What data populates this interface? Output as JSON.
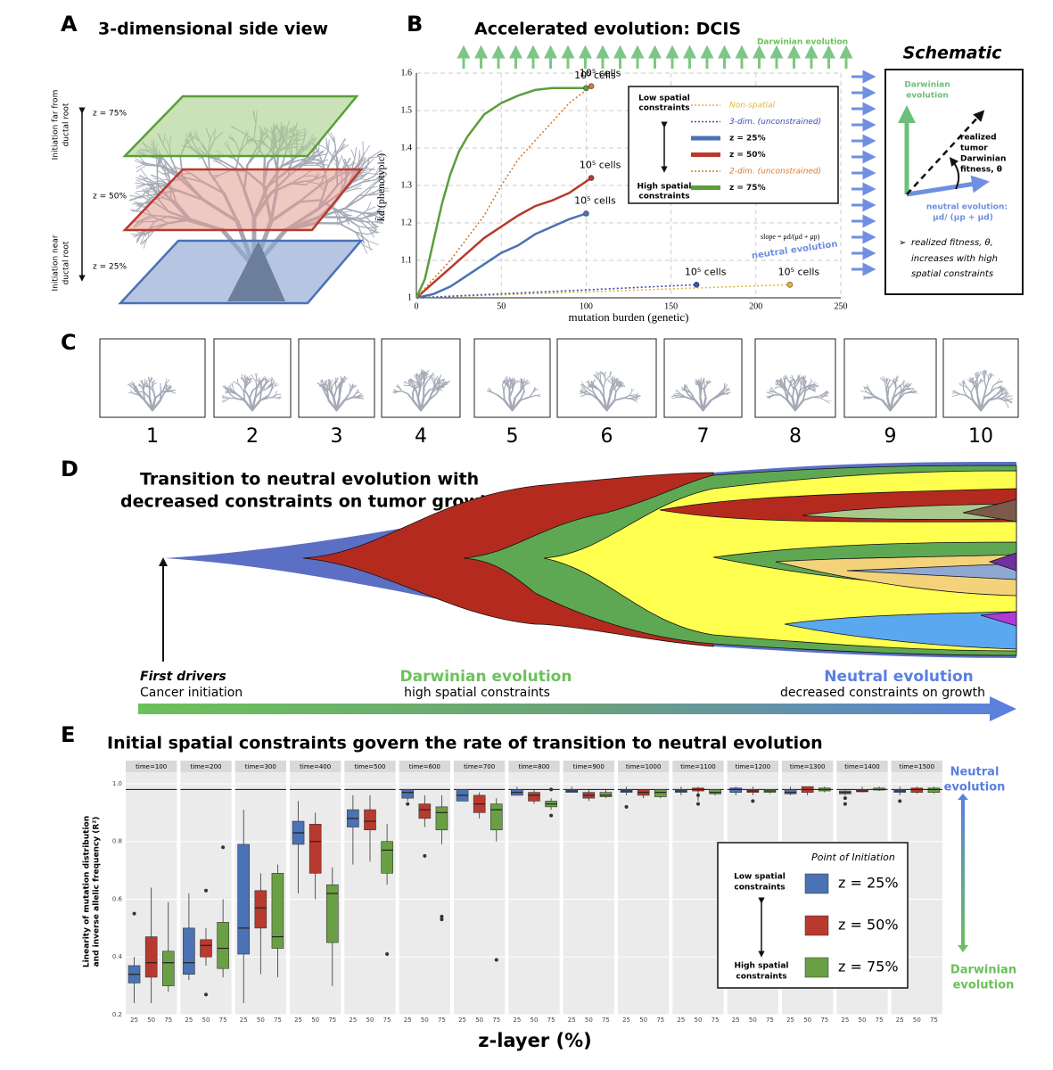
{
  "panel_letters": [
    "A",
    "B",
    "C",
    "D",
    "E"
  ],
  "panel_a": {
    "title": "3-dimensional side view",
    "top_label": [
      "Initiation far from",
      "ductal root"
    ],
    "bottom_label": [
      "Initiation near",
      "ductal root"
    ],
    "layers": [
      "z = 75%",
      "z = 50%",
      "z = 25%"
    ]
  },
  "schematic": {
    "title": "Schematic",
    "darwinian": [
      "Darwinian",
      "evolution"
    ],
    "realized": [
      "realized",
      "tumor",
      "Darwinian",
      "fitness, θ"
    ],
    "neutral": [
      "neutral evolution:",
      "μd/ (μp + μd)"
    ],
    "note": [
      "realized fitness, θ,",
      "increases with high",
      "spatial constraints"
    ]
  },
  "panel_c": {
    "labels": [
      "1",
      "2",
      "3",
      "4",
      "5",
      "6",
      "7",
      "8",
      "9",
      "10"
    ]
  },
  "panel_d": {
    "title": [
      "Transition to neutral evolution with",
      "decreased constraints on tumor growth"
    ],
    "start_title": "First drivers",
    "start_text": "Cancer initiation",
    "middle_title": "Darwinian evolution",
    "middle_text": "high spatial constraints",
    "end_title": "Neutral evolution",
    "end_text": "decreased constraints on growth"
  },
  "chart_data": [
    {
      "type": "line",
      "title": "Accelerated evolution: DCIS",
      "xlabel": "mutation burden (genetic)",
      "ylabel": "k̄d (phenotypic)",
      "xlim": [
        0,
        250
      ],
      "ylim": [
        1,
        1.6
      ],
      "xticks": [
        0,
        50,
        100,
        150,
        200,
        250
      ],
      "yticks": [
        1,
        1.1,
        1.2,
        1.3,
        1.4,
        1.5,
        1.6
      ],
      "grid": true,
      "legend_labels": [
        [
          "Low spatial",
          "constraints"
        ],
        [
          "High spatial",
          "constraints"
        ]
      ],
      "darwinian_label": "Darwinian evolution",
      "slope_label": "slope = μd/(μd + μp)",
      "neutral_label": "neutral evolution",
      "series": [
        {
          "name": "Non-spatial",
          "color": "#e3b53c",
          "style": "dotted",
          "end_label": "10⁵ cells",
          "x": [
            0,
            220
          ],
          "values": [
            1,
            1.035
          ]
        },
        {
          "name": "3-dim. (unconstrained)",
          "color": "#3b4fb0",
          "style": "dotted",
          "end_label": "10⁵ cells",
          "x": [
            0,
            165
          ],
          "values": [
            1,
            1.035
          ]
        },
        {
          "name": "z = 25%",
          "color": "#4a72b5",
          "style": "solid",
          "end_label": "10⁵ cells",
          "x": [
            0,
            10,
            20,
            30,
            40,
            50,
            60,
            70,
            80,
            90,
            100
          ],
          "values": [
            1,
            1.01,
            1.03,
            1.06,
            1.09,
            1.12,
            1.14,
            1.17,
            1.19,
            1.21,
            1.225
          ]
        },
        {
          "name": "z = 50%",
          "color": "#b83a2e",
          "style": "solid",
          "end_label": "10⁵ cells",
          "x": [
            0,
            10,
            20,
            30,
            40,
            50,
            60,
            70,
            80,
            90,
            103
          ],
          "values": [
            1,
            1.04,
            1.08,
            1.12,
            1.16,
            1.19,
            1.22,
            1.245,
            1.26,
            1.28,
            1.32
          ]
        },
        {
          "name": "2-dim. (unconstrained)",
          "color": "#d9792b",
          "style": "dotted",
          "end_label": "10⁵ cells",
          "x": [
            0,
            10,
            20,
            30,
            40,
            50,
            60,
            70,
            80,
            90,
            103
          ],
          "values": [
            1,
            1.05,
            1.1,
            1.16,
            1.22,
            1.3,
            1.37,
            1.42,
            1.47,
            1.52,
            1.565
          ]
        },
        {
          "name": "z = 75%",
          "color": "#5a9e3c",
          "style": "solid",
          "end_label": "10⁵ cells",
          "x": [
            0,
            5,
            10,
            15,
            20,
            25,
            30,
            40,
            50,
            60,
            70,
            80,
            100
          ],
          "values": [
            1,
            1.05,
            1.15,
            1.25,
            1.33,
            1.39,
            1.43,
            1.49,
            1.52,
            1.54,
            1.555,
            1.56,
            1.56
          ]
        }
      ]
    },
    {
      "type": "box",
      "title": "Initial spatial constraints govern the rate of transition to neutral evolution",
      "xlabel": "z-layer (%)",
      "ylabel": [
        "Linearity of mutation distribution",
        "and inverse allelic frequency (R²)"
      ],
      "facets": [
        "time=100",
        "time=200",
        "time=300",
        "time=400",
        "time=500",
        "time=600",
        "time=700",
        "time=800",
        "time=900",
        "time=1000",
        "time=1100",
        "time=1200",
        "time=1300",
        "time=1400",
        "time=1500"
      ],
      "categories": [
        "25",
        "50",
        "75"
      ],
      "ylim": [
        0.2,
        1.04
      ],
      "yticks": [
        0.2,
        0.4,
        0.6,
        0.8,
        {
          "value": 1,
          "label": "1.0"
        }
      ],
      "grid": true,
      "reference_line": 0.98,
      "legend_title": "Point of Initiation",
      "legend_labels": [
        [
          "Low spatial",
          "constraints"
        ],
        [
          "High spatial",
          "constraints"
        ]
      ],
      "side_labels": [
        [
          "Neutral",
          "evolution"
        ],
        [
          "Darwinian",
          "evolution"
        ]
      ],
      "series": [
        {
          "name": "z = 25%",
          "color": "#4a72b5",
          "min": [
            0.24,
            0.32,
            0.24,
            0.62,
            0.72,
            0.94,
            0.94,
            0.96,
            0.97,
            0.96,
            0.96,
            0.96,
            0.96,
            0.96,
            0.96
          ],
          "q1": [
            0.31,
            0.34,
            0.41,
            0.79,
            0.85,
            0.95,
            0.94,
            0.96,
            0.97,
            0.97,
            0.97,
            0.97,
            0.965,
            0.965,
            0.97
          ],
          "median": [
            0.34,
            0.38,
            0.5,
            0.83,
            0.88,
            0.97,
            0.96,
            0.97,
            0.975,
            0.975,
            0.975,
            0.98,
            0.97,
            0.97,
            0.975
          ],
          "q3": [
            0.37,
            0.5,
            0.79,
            0.87,
            0.91,
            0.98,
            0.98,
            0.98,
            0.98,
            0.98,
            0.98,
            0.985,
            0.98,
            0.975,
            0.98
          ],
          "max": [
            0.4,
            0.62,
            0.91,
            0.94,
            0.96,
            0.98,
            0.98,
            0.99,
            0.99,
            0.99,
            0.99,
            0.99,
            0.99,
            0.98,
            0.99
          ],
          "outliers": [
            [
              0.55
            ],
            [],
            [],
            [],
            [],
            [
              0.93
            ],
            [],
            [],
            [],
            [
              0.92
            ],
            [],
            [],
            [],
            [
              0.95,
              0.93
            ],
            [
              0.94
            ]
          ]
        },
        {
          "name": "z = 50%",
          "color": "#b83a2e",
          "min": [
            0.24,
            0.37,
            0.34,
            0.6,
            0.73,
            0.85,
            0.88,
            0.93,
            0.94,
            0.95,
            0.94,
            0.96,
            0.96,
            0.97,
            0.965
          ],
          "q1": [
            0.33,
            0.4,
            0.5,
            0.69,
            0.84,
            0.88,
            0.9,
            0.94,
            0.95,
            0.96,
            0.975,
            0.97,
            0.97,
            0.972,
            0.97
          ],
          "median": [
            0.38,
            0.44,
            0.57,
            0.8,
            0.87,
            0.91,
            0.93,
            0.96,
            0.96,
            0.97,
            0.98,
            0.975,
            0.98,
            0.975,
            0.98
          ],
          "q3": [
            0.47,
            0.46,
            0.63,
            0.86,
            0.91,
            0.93,
            0.96,
            0.97,
            0.97,
            0.98,
            0.985,
            0.98,
            0.99,
            0.98,
            0.985
          ],
          "max": [
            0.64,
            0.5,
            0.69,
            0.9,
            0.96,
            0.96,
            0.97,
            0.98,
            0.98,
            0.98,
            0.99,
            0.99,
            0.99,
            0.99,
            0.99
          ],
          "outliers": [
            [],
            [
              0.27,
              0.63
            ],
            [],
            [],
            [],
            [
              0.75
            ],
            [],
            [],
            [],
            [],
            [
              0.96,
              0.93
            ],
            [
              0.94
            ],
            [],
            [],
            []
          ]
        },
        {
          "name": "z = 75%",
          "color": "#6aa043",
          "min": [
            0.28,
            0.33,
            0.33,
            0.3,
            0.65,
            0.79,
            0.8,
            0.91,
            0.95,
            0.95,
            0.96,
            0.965,
            0.97,
            0.975,
            0.965
          ],
          "q1": [
            0.3,
            0.36,
            0.43,
            0.45,
            0.69,
            0.84,
            0.84,
            0.92,
            0.955,
            0.955,
            0.965,
            0.97,
            0.975,
            0.978,
            0.97
          ],
          "median": [
            0.38,
            0.43,
            0.47,
            0.62,
            0.77,
            0.9,
            0.91,
            0.93,
            0.96,
            0.97,
            0.97,
            0.975,
            0.98,
            0.98,
            0.98
          ],
          "q3": [
            0.42,
            0.52,
            0.69,
            0.65,
            0.8,
            0.92,
            0.93,
            0.94,
            0.97,
            0.98,
            0.98,
            0.98,
            0.985,
            0.985,
            0.985
          ],
          "max": [
            0.59,
            0.6,
            0.72,
            0.71,
            0.86,
            0.96,
            0.95,
            0.95,
            0.98,
            0.98,
            0.98,
            0.98,
            0.99,
            0.99,
            0.99
          ],
          "outliers": [
            [],
            [
              0.78
            ],
            [],
            [],
            [
              0.41
            ],
            [
              0.54,
              0.53
            ],
            [
              0.39
            ],
            [
              0.89,
              0.98
            ],
            [],
            [],
            [],
            [],
            [],
            [],
            []
          ]
        }
      ]
    }
  ]
}
